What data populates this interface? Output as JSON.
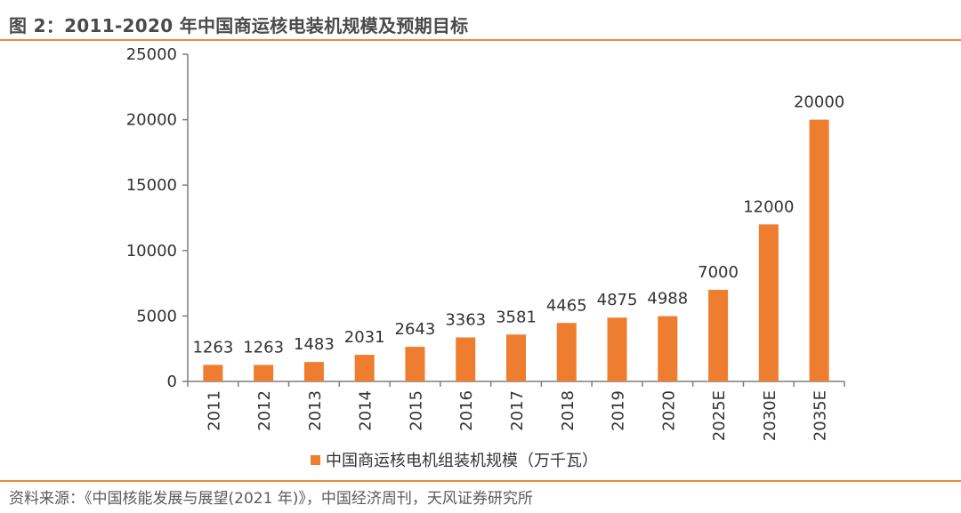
{
  "header": {
    "title": "图 2：2011-2020 年中国商运核电装机规模及预期目标"
  },
  "footer": {
    "source": "资料来源：《中国核能发展与展望(2021 年)》，中国经济周刊，天风证券研究所"
  },
  "colors": {
    "bar": "#ee7d2f",
    "rule": "#ee8b3a",
    "axis": "#7f7f7f"
  },
  "chart_data": {
    "type": "bar",
    "categories": [
      "2011",
      "2012",
      "2013",
      "2014",
      "2015",
      "2016",
      "2017",
      "2018",
      "2019",
      "2020",
      "2025E",
      "2030E",
      "2035E"
    ],
    "series": [
      {
        "name": "中国商运核电机组装机规模（万千瓦）",
        "values": [
          1263,
          1263,
          1483,
          2031,
          2643,
          3363,
          3581,
          4465,
          4875,
          4988,
          7000,
          12000,
          20000
        ]
      }
    ],
    "yticks": [
      "0",
      "5000",
      "10000",
      "15000",
      "20000",
      "25000"
    ],
    "ylim": [
      0,
      25000
    ],
    "grid": false,
    "legend": "bottom-center",
    "data_labels": true,
    "x_label_rotation": "vertical"
  }
}
